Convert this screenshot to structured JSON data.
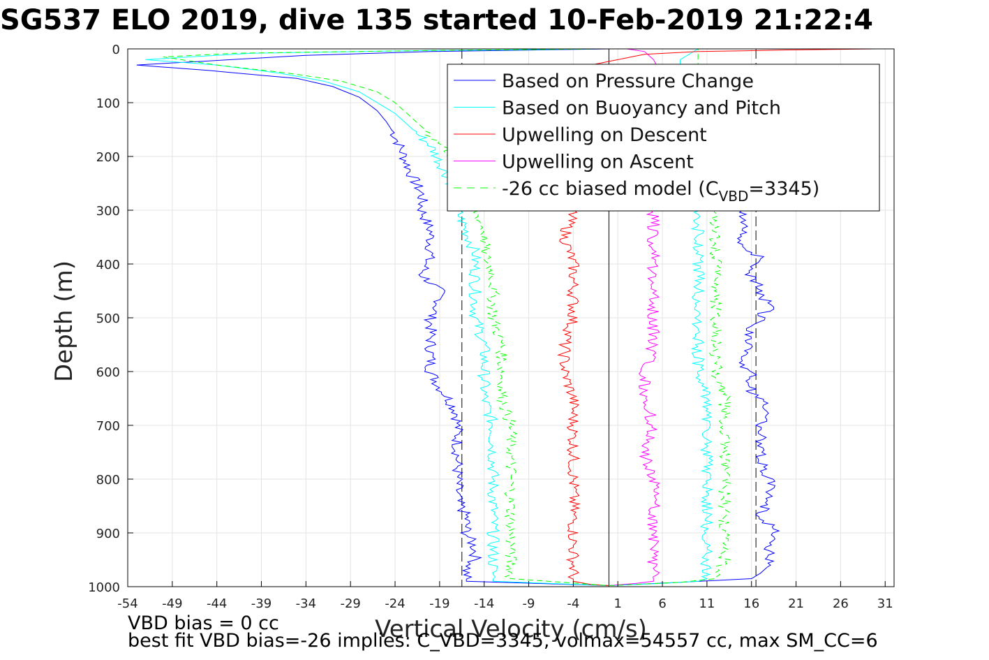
{
  "chart_data": {
    "type": "line",
    "title": "SG537 ELO 2019, dive 135 started 10-Feb-2019 21:22:4",
    "xlabel": "Vertical Velocity (cm/s)",
    "ylabel": "Depth (m)",
    "xlim": [
      -54,
      32
    ],
    "ylim": [
      0,
      1000
    ],
    "y_reversed": true,
    "grid": true,
    "legend_position": "top-right",
    "xticks": [
      "-54",
      "-49",
      "-44",
      "-39",
      "-34",
      "-29",
      "-24",
      "-19",
      "-14",
      "-9",
      "-4",
      "1",
      "6",
      "11",
      "16",
      "21",
      "26",
      "31"
    ],
    "yticks": [
      "0",
      "100",
      "200",
      "300",
      "400",
      "500",
      "600",
      "700",
      "800",
      "900",
      "1000"
    ],
    "reference_lines": [
      {
        "x": 0,
        "style": "solid",
        "color": "#000000"
      },
      {
        "x": -16.5,
        "style": "dashed",
        "color": "#000000"
      },
      {
        "x": 16.5,
        "style": "dashed",
        "color": "#000000"
      }
    ],
    "series": [
      {
        "name": "Based on Pressure Change",
        "color": "#0000ff",
        "style": "solid",
        "width": 1,
        "points": [
          [
            0,
            0
          ],
          [
            -20,
            5
          ],
          [
            -34,
            12
          ],
          [
            -53,
            30
          ],
          [
            -45,
            40
          ],
          [
            -35,
            55
          ],
          [
            -31,
            70
          ],
          [
            -28,
            90
          ],
          [
            -26,
            115
          ],
          [
            -25,
            135
          ],
          [
            -24,
            160
          ],
          [
            -23,
            200
          ],
          [
            -22,
            240
          ],
          [
            -21,
            270
          ],
          [
            -21,
            300
          ],
          [
            -20,
            340
          ],
          [
            -20,
            380
          ],
          [
            -21,
            420
          ],
          [
            -19,
            450
          ],
          [
            -19,
            470
          ],
          [
            -20,
            500
          ],
          [
            -20,
            550
          ],
          [
            -20,
            600
          ],
          [
            -19,
            630
          ],
          [
            -18,
            650
          ],
          [
            -17,
            680
          ],
          [
            -17,
            720
          ],
          [
            -17,
            760
          ],
          [
            -17,
            800
          ],
          [
            -17,
            840
          ],
          [
            -16,
            870
          ],
          [
            -16,
            900
          ],
          [
            -15,
            930
          ],
          [
            -15,
            950
          ],
          [
            -16,
            970
          ],
          [
            -16,
            990
          ],
          [
            0,
            998
          ]
        ]
      },
      {
        "name": "Based on Pressure Change",
        "color": "#0000ff",
        "style": "solid",
        "width": 1,
        "points": [
          [
            0,
            998
          ],
          [
            8,
            992
          ],
          [
            16,
            985
          ],
          [
            17,
            975
          ],
          [
            18,
            960
          ],
          [
            18,
            930
          ],
          [
            19,
            900
          ],
          [
            17,
            870
          ],
          [
            18,
            840
          ],
          [
            18,
            800
          ],
          [
            17,
            770
          ],
          [
            17,
            730
          ],
          [
            17,
            700
          ],
          [
            18,
            670
          ],
          [
            16,
            640
          ],
          [
            16,
            610
          ],
          [
            15,
            580
          ],
          [
            16,
            550
          ],
          [
            16,
            520
          ],
          [
            18,
            480
          ],
          [
            17,
            450
          ],
          [
            16,
            420
          ],
          [
            17,
            390
          ],
          [
            15,
            360
          ],
          [
            15,
            330
          ],
          [
            15,
            300
          ]
        ]
      },
      {
        "name": "Based on Buoyancy and Pitch",
        "color": "#00ffff",
        "style": "solid",
        "width": 1,
        "points": [
          [
            -1,
            0
          ],
          [
            -20,
            3
          ],
          [
            -40,
            8
          ],
          [
            -52,
            20
          ],
          [
            -44,
            30
          ],
          [
            -37,
            45
          ],
          [
            -32,
            60
          ],
          [
            -28,
            80
          ],
          [
            -26,
            100
          ],
          [
            -24,
            120
          ],
          [
            -22,
            150
          ],
          [
            -20,
            180
          ],
          [
            -19,
            210
          ],
          [
            -18,
            240
          ],
          [
            -17,
            270
          ],
          [
            -17,
            300
          ],
          [
            -16,
            340
          ],
          [
            -15,
            380
          ],
          [
            -15,
            420
          ],
          [
            -15,
            460
          ],
          [
            -15,
            500
          ],
          [
            -14,
            550
          ],
          [
            -14,
            600
          ],
          [
            -14,
            650
          ],
          [
            -13,
            700
          ],
          [
            -13,
            750
          ],
          [
            -13,
            800
          ],
          [
            -13,
            850
          ],
          [
            -13,
            900
          ],
          [
            -13,
            950
          ],
          [
            -13,
            990
          ],
          [
            0,
            998
          ]
        ]
      },
      {
        "name": "Based on Buoyancy and Pitch",
        "color": "#00ffff",
        "style": "solid",
        "width": 1,
        "points": [
          [
            0,
            998
          ],
          [
            6,
            994
          ],
          [
            10,
            990
          ],
          [
            11,
            985
          ],
          [
            11,
            950
          ],
          [
            11,
            900
          ],
          [
            11,
            850
          ],
          [
            11,
            800
          ],
          [
            11,
            750
          ],
          [
            11,
            700
          ],
          [
            11,
            650
          ],
          [
            10,
            600
          ],
          [
            10,
            550
          ],
          [
            10,
            500
          ],
          [
            10,
            450
          ],
          [
            10,
            400
          ],
          [
            10,
            350
          ],
          [
            10,
            300
          ],
          [
            10,
            280
          ],
          [
            10,
            250
          ],
          [
            9,
            200
          ],
          [
            9,
            150
          ],
          [
            9,
            100
          ],
          [
            8,
            50
          ],
          [
            8,
            20
          ],
          [
            9,
            10
          ],
          [
            10,
            0
          ]
        ]
      },
      {
        "name": "Upwelling on Descent",
        "color": "#ff0000",
        "style": "solid",
        "width": 1,
        "points": [
          [
            30,
            0
          ],
          [
            20,
            2
          ],
          [
            10,
            5
          ],
          [
            4,
            10
          ],
          [
            -2,
            30
          ],
          [
            -3,
            80
          ],
          [
            -4,
            150
          ],
          [
            -4,
            250
          ],
          [
            -4,
            300
          ],
          [
            -5,
            350
          ],
          [
            -4,
            400
          ],
          [
            -4,
            450
          ],
          [
            -4,
            500
          ],
          [
            -5,
            550
          ],
          [
            -5,
            600
          ],
          [
            -4,
            650
          ],
          [
            -4,
            700
          ],
          [
            -4,
            750
          ],
          [
            -4,
            800
          ],
          [
            -4,
            850
          ],
          [
            -4,
            900
          ],
          [
            -4,
            950
          ],
          [
            -4,
            990
          ],
          [
            -2,
            996
          ],
          [
            0,
            998
          ]
        ]
      },
      {
        "name": "Upwelling on Ascent",
        "color": "#ff00ff",
        "style": "solid",
        "width": 1,
        "points": [
          [
            0,
            998
          ],
          [
            3,
            994
          ],
          [
            5,
            990
          ],
          [
            5,
            950
          ],
          [
            5,
            900
          ],
          [
            5,
            850
          ],
          [
            5,
            800
          ],
          [
            4,
            750
          ],
          [
            5,
            700
          ],
          [
            4,
            650
          ],
          [
            4,
            600
          ],
          [
            5,
            550
          ],
          [
            5,
            500
          ],
          [
            5,
            450
          ],
          [
            5,
            400
          ],
          [
            5,
            350
          ],
          [
            5,
            300
          ],
          [
            5,
            250
          ],
          [
            5,
            200
          ],
          [
            5,
            150
          ],
          [
            5,
            100
          ],
          [
            6,
            50
          ],
          [
            5,
            20
          ],
          [
            4,
            5
          ],
          [
            2,
            0
          ]
        ]
      },
      {
        "name": "-26 cc biased model (C_VBD=3345)",
        "color": "#00ff00",
        "style": "dashed",
        "width": 1,
        "points": [
          [
            -1,
            0
          ],
          [
            -20,
            3
          ],
          [
            -42,
            8
          ],
          [
            -50,
            15
          ],
          [
            -44,
            30
          ],
          [
            -36,
            45
          ],
          [
            -30,
            60
          ],
          [
            -26,
            80
          ],
          [
            -24,
            100
          ],
          [
            -22,
            130
          ],
          [
            -20,
            160
          ],
          [
            -18,
            190
          ],
          [
            -17,
            220
          ],
          [
            -16,
            260
          ],
          [
            -15,
            300
          ],
          [
            -14,
            340
          ],
          [
            -14,
            380
          ],
          [
            -13,
            420
          ],
          [
            -13,
            460
          ],
          [
            -13,
            500
          ],
          [
            -12,
            550
          ],
          [
            -12,
            600
          ],
          [
            -12,
            650
          ],
          [
            -11,
            700
          ],
          [
            -11,
            750
          ],
          [
            -11,
            800
          ],
          [
            -11,
            850
          ],
          [
            -11,
            900
          ],
          [
            -11,
            950
          ],
          [
            -11,
            985
          ],
          [
            0,
            998
          ]
        ]
      },
      {
        "name": "-26 cc biased model (C_VBD=3345)",
        "color": "#00ff00",
        "style": "dashed",
        "width": 1,
        "points": [
          [
            0,
            998
          ],
          [
            8,
            992
          ],
          [
            12,
            985
          ],
          [
            13,
            950
          ],
          [
            13,
            900
          ],
          [
            13,
            850
          ],
          [
            13,
            800
          ],
          [
            13,
            750
          ],
          [
            13,
            700
          ],
          [
            13,
            650
          ],
          [
            12,
            600
          ],
          [
            12,
            550
          ],
          [
            12,
            500
          ],
          [
            12,
            450
          ],
          [
            12,
            400
          ],
          [
            12,
            350
          ],
          [
            12,
            300
          ],
          [
            11,
            250
          ],
          [
            11,
            200
          ],
          [
            11,
            150
          ],
          [
            11,
            100
          ],
          [
            10,
            50
          ],
          [
            10,
            20
          ],
          [
            10,
            5
          ],
          [
            10,
            0
          ]
        ]
      }
    ],
    "legend": [
      {
        "label": "Based on Pressure Change",
        "color": "#0000ff",
        "style": "solid"
      },
      {
        "label": "Based on Buoyancy and Pitch",
        "color": "#00ffff",
        "style": "solid"
      },
      {
        "label": "Upwelling on Descent",
        "color": "#ff0000",
        "style": "solid"
      },
      {
        "label": "Upwelling on Ascent",
        "color": "#ff00ff",
        "style": "solid"
      },
      {
        "label_prefix": "-26 cc biased model (C",
        "label_sub": "VBD",
        "label_suffix": "=3345)",
        "color": "#00ff00",
        "style": "dashed"
      }
    ],
    "footer": [
      "VBD bias = 0 cc",
      "best fit VBD bias=-26 implies: C_VBD=3345, volmax=54557 cc, max SM_CC=6"
    ]
  }
}
